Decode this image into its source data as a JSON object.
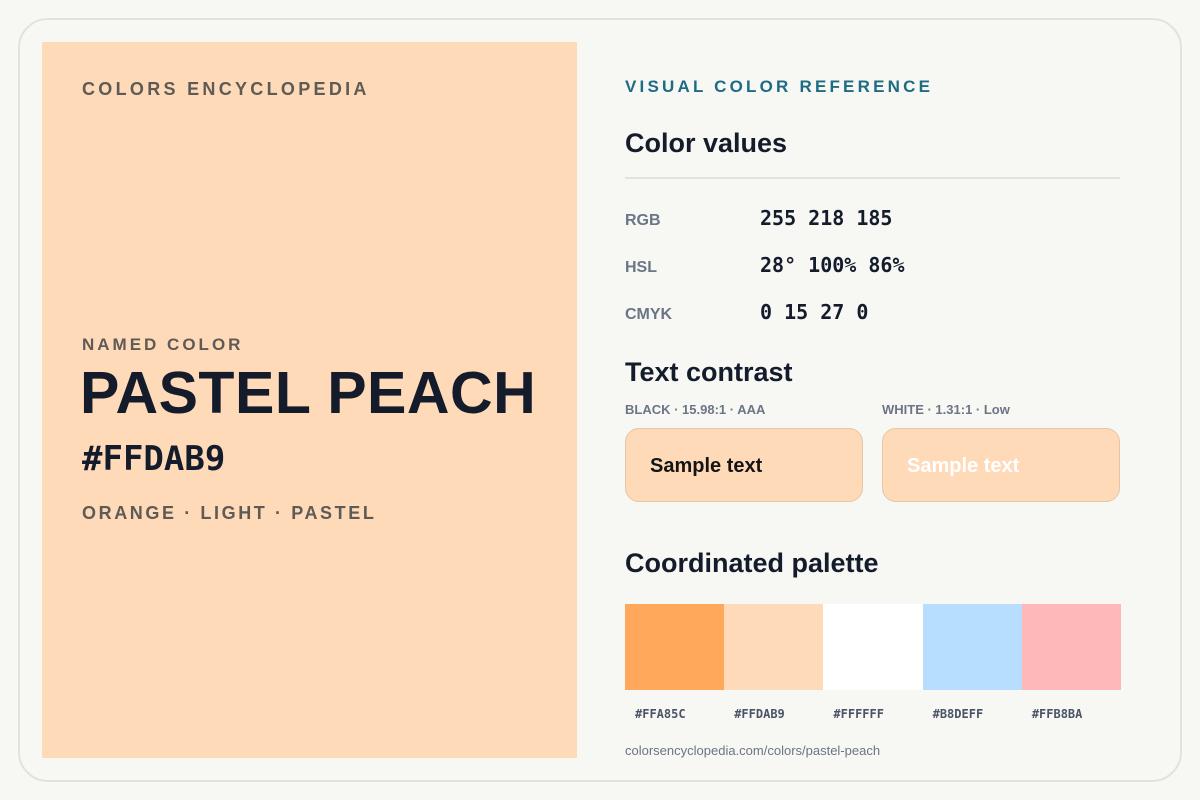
{
  "brand": "COLORS ENCYCLOPEDIA",
  "color": {
    "named_label": "NAMED COLOR",
    "name": "PASTEL PEACH",
    "hex": "#FFDAB9",
    "tags": "ORANGE · LIGHT · PASTEL",
    "swatch_color": "#FFDAB9"
  },
  "reference": {
    "kicker": "VISUAL COLOR REFERENCE",
    "values_title": "Color values",
    "values": [
      {
        "label": "RGB",
        "value": "255 218 185"
      },
      {
        "label": "HSL",
        "value": "28° 100% 86%"
      },
      {
        "label": "CMYK",
        "value": "0 15 27 0"
      }
    ],
    "contrast_title": "Text contrast",
    "contrast": [
      {
        "label": "BLACK · 15.98:1 · AAA",
        "sample": "Sample text",
        "text_color": "#141414"
      },
      {
        "label": "WHITE · 1.31:1 · Low",
        "sample": "Sample text",
        "text_color": "#ffffff"
      }
    ],
    "palette_title": "Coordinated palette",
    "palette": [
      {
        "hex": "#FFA85C"
      },
      {
        "hex": "#FFDAB9"
      },
      {
        "hex": "#FFFFFF"
      },
      {
        "hex": "#B8DEFF"
      },
      {
        "hex": "#FFB8BA"
      }
    ],
    "url": "colorsencyclopedia.com/colors/pastel-peach"
  }
}
